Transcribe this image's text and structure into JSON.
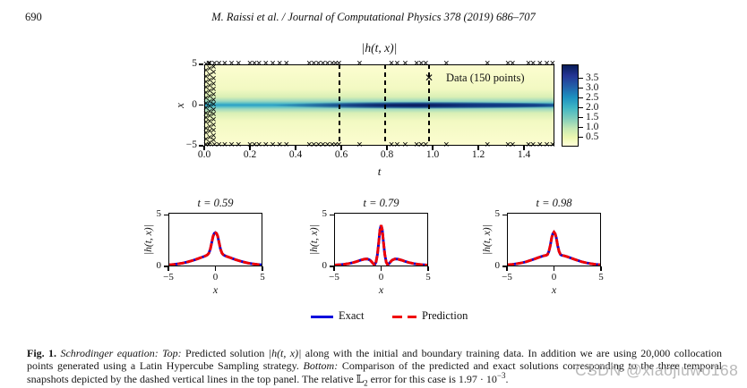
{
  "header": {
    "page_number": "690",
    "journal_line": "M. Raissi et al. / Journal of Computational Physics 378 (2019) 686–707"
  },
  "top_panel": {
    "title": "|h(t, x)|",
    "xlabel": "t",
    "ylabel": "x",
    "x_ticks": [
      "0.0",
      "0.2",
      "0.4",
      "0.6",
      "0.8",
      "1.0",
      "1.2",
      "1.4"
    ],
    "y_ticks": [
      "5",
      "0",
      "−5"
    ],
    "legend": {
      "marker": "✕",
      "label": "Data (150 points)"
    },
    "dashed_lines_t": [
      0.59,
      0.79,
      0.98
    ],
    "boundary_marker_t": [
      0.02,
      0.045,
      0.065,
      0.09,
      0.12,
      0.15,
      0.2,
      0.22,
      0.24,
      0.27,
      0.3,
      0.33,
      0.36,
      0.46,
      0.48,
      0.5,
      0.52,
      0.54,
      0.56,
      0.575,
      0.59,
      0.68,
      0.82,
      0.845,
      0.88,
      0.93,
      0.95,
      0.97,
      1.06,
      1.24,
      1.33,
      1.35,
      1.42,
      1.44,
      1.47,
      1.5,
      1.525
    ],
    "initial_marker_x": [
      -5,
      -4.75,
      -4.5,
      -4.3,
      -4.1,
      -3.9,
      -3.6,
      -3.4,
      -3.2,
      -3.0,
      -2.8,
      -2.55,
      -2.3,
      -2.1,
      -1.9,
      -1.7,
      -1.5,
      -1.3,
      -1.1,
      -0.9,
      -0.7,
      -0.5,
      -0.3,
      -0.1,
      0.1,
      0.3,
      0.5,
      0.7,
      0.9,
      1.1,
      1.35,
      1.6,
      1.8,
      2.0,
      2.2,
      2.45,
      2.7,
      2.9,
      3.1,
      3.35,
      3.6,
      3.85,
      4.1,
      4.35,
      4.6,
      4.85,
      5.0
    ],
    "colorbar": {
      "ticks": [
        "3.5",
        "3.0",
        "2.5",
        "2.0",
        "1.5",
        "1.0",
        "0.5"
      ]
    }
  },
  "bottom_panels": {
    "ylabel": "|h(t, x)|",
    "xlabel": "x",
    "x_ticks": [
      "−5",
      "0",
      "5"
    ],
    "y_ticks": [
      "5",
      "0"
    ]
  },
  "bottom_legend": {
    "exact_label": "Exact",
    "prediction_label": "Prediction",
    "exact_color": "#0000dd",
    "prediction_color": "#f00000"
  },
  "chart_data": [
    {
      "type": "heatmap",
      "title": "|h(t, x)|",
      "xlabel": "t",
      "ylabel": "x",
      "x_range": [
        0.0,
        1.55
      ],
      "y_range": [
        -5,
        5
      ],
      "x_tick_labels": [
        "0.0",
        "0.2",
        "0.4",
        "0.6",
        "0.8",
        "1.0",
        "1.2",
        "1.4"
      ],
      "y_tick_labels": [
        "5",
        "0",
        "−5"
      ],
      "colorbar_ticks": [
        3.5,
        3.0,
        2.5,
        2.0,
        1.5,
        1.0,
        0.5
      ],
      "colormap": "YlGnBu (yellow low → dark navy high)",
      "legend_entry": "Data (150 points)",
      "dashed_snapshot_lines_t": [
        0.59,
        0.79,
        0.98
      ],
      "features": "bright |h| band centered at x=0 for all t, darkest/narrowest near t≈0.6–1.0; black × training data on t=0 column and x=±5 boundaries"
    },
    {
      "type": "line",
      "title": "t = 0.59",
      "xlabel": "x",
      "ylabel": "|h(t, x)|",
      "xlim": [
        -5,
        5
      ],
      "ylim": [
        0,
        5.2
      ],
      "x_tick_labels": [
        "−5",
        "0",
        "5"
      ],
      "y_tick_labels": [
        "0",
        "5"
      ],
      "series_names": [
        "Exact",
        "Prediction"
      ],
      "series_note": "Prediction overlaps Exact",
      "x": [
        -5,
        -4.5,
        -4,
        -3.5,
        -3,
        -2.6,
        -2.2,
        -1.8,
        -1.5,
        -1.2,
        -1.0,
        -0.85,
        -0.7,
        -0.55,
        -0.4,
        -0.25,
        -0.12,
        0,
        0.12,
        0.25,
        0.4,
        0.55,
        0.7,
        0.85,
        1.0,
        1.2,
        1.5,
        1.8,
        2.2,
        2.6,
        3,
        3.5,
        4,
        4.5,
        5
      ],
      "y": [
        0.07,
        0.11,
        0.17,
        0.25,
        0.36,
        0.47,
        0.58,
        0.72,
        0.82,
        0.92,
        1.0,
        1.08,
        1.25,
        1.65,
        2.3,
        2.95,
        3.22,
        3.3,
        3.22,
        2.95,
        2.3,
        1.65,
        1.25,
        1.08,
        1.0,
        0.92,
        0.82,
        0.72,
        0.58,
        0.47,
        0.36,
        0.25,
        0.17,
        0.11,
        0.07
      ]
    },
    {
      "type": "line",
      "title": "t = 0.79",
      "xlabel": "x",
      "ylabel": "|h(t, x)|",
      "xlim": [
        -5,
        5
      ],
      "ylim": [
        0,
        5.2
      ],
      "x_tick_labels": [
        "−5",
        "0",
        "5"
      ],
      "y_tick_labels": [
        "0",
        "5"
      ],
      "series_names": [
        "Exact",
        "Prediction"
      ],
      "series_note": "Prediction overlaps Exact",
      "x": [
        -5,
        -4.5,
        -4,
        -3.5,
        -3,
        -2.6,
        -2.2,
        -1.8,
        -1.5,
        -1.2,
        -1.0,
        -0.85,
        -0.7,
        -0.55,
        -0.4,
        -0.25,
        -0.12,
        0,
        0.12,
        0.25,
        0.4,
        0.55,
        0.7,
        0.85,
        1.0,
        1.2,
        1.5,
        1.8,
        2.2,
        2.6,
        3,
        3.5,
        4,
        4.5,
        5
      ],
      "y": [
        0.05,
        0.08,
        0.13,
        0.2,
        0.3,
        0.42,
        0.55,
        0.64,
        0.66,
        0.55,
        0.35,
        0.18,
        0.07,
        0.35,
        1.1,
        2.4,
        3.6,
        4.05,
        3.6,
        2.4,
        1.1,
        0.35,
        0.07,
        0.18,
        0.35,
        0.55,
        0.66,
        0.64,
        0.55,
        0.42,
        0.3,
        0.2,
        0.13,
        0.08,
        0.05
      ]
    },
    {
      "type": "line",
      "title": "t = 0.98",
      "xlabel": "x",
      "ylabel": "|h(t, x)|",
      "xlim": [
        -5,
        5
      ],
      "ylim": [
        0,
        5.2
      ],
      "x_tick_labels": [
        "−5",
        "0",
        "5"
      ],
      "y_tick_labels": [
        "0",
        "5"
      ],
      "series_names": [
        "Exact",
        "Prediction"
      ],
      "series_note": "Prediction overlaps Exact",
      "x": [
        -5,
        -4.5,
        -4,
        -3.5,
        -3,
        -2.6,
        -2.2,
        -1.8,
        -1.5,
        -1.2,
        -1.0,
        -0.85,
        -0.7,
        -0.55,
        -0.4,
        -0.25,
        -0.12,
        0,
        0.12,
        0.25,
        0.4,
        0.55,
        0.7,
        0.85,
        1.0,
        1.2,
        1.5,
        1.8,
        2.2,
        2.6,
        3,
        3.5,
        4,
        4.5,
        5
      ],
      "y": [
        0.08,
        0.12,
        0.18,
        0.27,
        0.38,
        0.5,
        0.62,
        0.76,
        0.86,
        0.95,
        1.0,
        1.02,
        1.1,
        1.4,
        2.0,
        2.8,
        3.2,
        3.35,
        3.2,
        2.8,
        2.0,
        1.4,
        1.1,
        1.02,
        1.0,
        0.95,
        0.86,
        0.76,
        0.62,
        0.5,
        0.38,
        0.27,
        0.18,
        0.12,
        0.08
      ]
    }
  ],
  "caption": {
    "segments": [
      {
        "text": "Fig. 1. ",
        "style": "bold"
      },
      {
        "text": "Schrodinger equation: Top: ",
        "style": "italic"
      },
      {
        "text": "Predicted solution ",
        "style": "normal"
      },
      {
        "text": "|h(t, x)|",
        "style": "italic"
      },
      {
        "text": " along with the initial and boundary training data. In addition we are using 20,000 collocation points generated using a Latin Hypercube Sampling strategy. ",
        "style": "normal"
      },
      {
        "text": "Bottom: ",
        "style": "italic"
      },
      {
        "text": "Comparison of the predicted and exact solutions corresponding to the three temporal snapshots depicted by the dashed vertical lines in the top panel. The relative ",
        "style": "normal"
      },
      {
        "text": "𝕃",
        "style": "normal"
      },
      {
        "text": "2",
        "style": "sub"
      },
      {
        "text": " error for this case is 1.97 · 10",
        "style": "normal"
      },
      {
        "text": "−3",
        "style": "sup"
      },
      {
        "text": ".",
        "style": "normal"
      }
    ]
  },
  "watermark": "CSDN @xiaojiuwo168"
}
